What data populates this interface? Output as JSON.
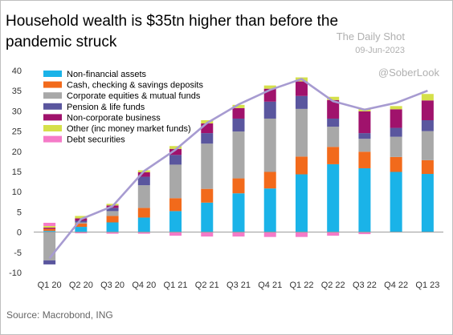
{
  "title": "Household wealth is $35tn higher than before the pandemic struck",
  "watermark": {
    "brand": "The Daily Shot",
    "date": "09-Jun-2023",
    "handle": "@SoberLook"
  },
  "source": "Source: Macrobond, ING",
  "colors": {
    "Non-financial assets": "#1ab3e8",
    "Cash, checking & savings deposits": "#f26a1b",
    "Corporate equities & mutual funds": "#a8a8a8",
    "Pension & life funds": "#5a569e",
    "Non-corporate business": "#a0126c",
    "Other (inc money market funds)": "#d5e04a",
    "Debt securities": "#f57ac8",
    "total_line": "#a79bd1"
  },
  "chart_data": {
    "type": "bar",
    "stacked": true,
    "categories": [
      "Q1 20",
      "Q2 20",
      "Q3 20",
      "Q4 20",
      "Q1 21",
      "Q2 21",
      "Q3 21",
      "Q4 21",
      "Q1 22",
      "Q2 22",
      "Q3 22",
      "Q4 22",
      "Q1 23"
    ],
    "ylim": [
      -10,
      40
    ],
    "yticks": [
      -10,
      -5,
      0,
      5,
      10,
      15,
      20,
      25,
      30,
      35,
      40
    ],
    "grid": false,
    "legend_position": "top-left",
    "series": [
      {
        "name": "Non-financial assets",
        "values": [
          0.3,
          1.3,
          2.4,
          3.6,
          5.2,
          7.3,
          9.6,
          10.8,
          14.3,
          16.8,
          15.8,
          14.9,
          14.4
        ]
      },
      {
        "name": "Cash, checking & savings deposits",
        "values": [
          0.5,
          0.8,
          1.6,
          2.4,
          3.2,
          3.4,
          3.7,
          4.1,
          4.4,
          4.3,
          4.1,
          3.7,
          3.4
        ]
      },
      {
        "name": "Corporate equities & mutual funds",
        "values": [
          -7.0,
          0.3,
          1.2,
          5.6,
          8.3,
          11.2,
          11.6,
          13.2,
          11.8,
          5.0,
          3.2,
          5.0,
          7.2
        ]
      },
      {
        "name": "Pension & life funds",
        "values": [
          -1.0,
          0.4,
          0.8,
          2.1,
          2.4,
          2.6,
          3.2,
          4.2,
          3.2,
          2.0,
          1.4,
          2.2,
          2.7
        ]
      },
      {
        "name": "Non-corporate business",
        "values": [
          0.3,
          0.6,
          0.6,
          1.1,
          1.5,
          2.4,
          2.6,
          3.2,
          3.6,
          4.6,
          5.4,
          4.6,
          4.9
        ]
      },
      {
        "name": "Other (inc money market funds)",
        "values": [
          0.4,
          0.6,
          0.4,
          0.5,
          0.7,
          0.8,
          0.8,
          0.8,
          1.0,
          0.8,
          0.7,
          0.8,
          1.6
        ]
      },
      {
        "name": "Debt securities",
        "values": [
          0.8,
          -0.3,
          -0.4,
          -0.4,
          -0.9,
          -1.1,
          -1.1,
          -1.2,
          -1.2,
          -0.9,
          -0.5,
          0.0,
          0.0
        ]
      }
    ],
    "line": {
      "values": [
        -6.5,
        3.2,
        6.4,
        15.1,
        20.4,
        27.0,
        31.6,
        35.2,
        37.9,
        32.4,
        30.3,
        32.0,
        35.0
      ]
    }
  }
}
